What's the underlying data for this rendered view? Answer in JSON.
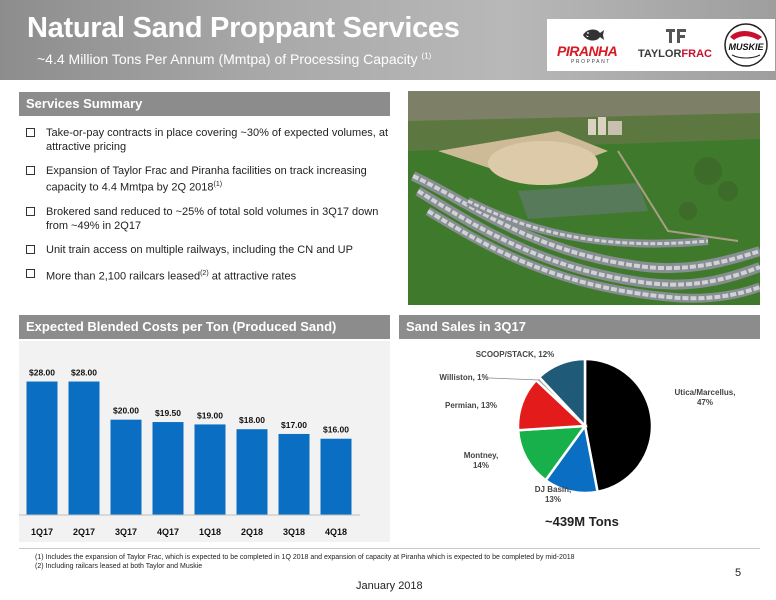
{
  "header": {
    "title": "Natural Sand Proppant Services",
    "subtitle": "~4.4 Million Tons Per Annum (Mmtpa) of Processing Capacity",
    "subtitle_footnote": "(1)"
  },
  "logos": {
    "piranha_name": "PIRANHA",
    "piranha_sub": "PROPPANT",
    "taylor_name_a": "TAYLOR",
    "taylor_name_b": "FRAC",
    "muskie_name": "MUSKIE"
  },
  "services": {
    "heading": "Services Summary",
    "bullets": [
      {
        "text": "Take-or-pay contracts in place covering ~30% of expected volumes, at attractive pricing",
        "sup": "",
        "after": ""
      },
      {
        "text": "Expansion of Taylor Frac and Piranha facilities on track increasing capacity to 4.4 Mmtpa by 2Q 2018",
        "sup": "(1)",
        "after": ""
      },
      {
        "text": "Brokered sand reduced to ~25% of total sold volumes in 3Q17 down from ~49% in 2Q17",
        "sup": "",
        "after": ""
      },
      {
        "text": "Unit train access on multiple railways, including the CN and UP",
        "sup": "",
        "after": ""
      },
      {
        "text": "More than 2,100 railcars leased",
        "sup": "(2)",
        "after": " at attractive rates"
      }
    ]
  },
  "costs_section": {
    "heading": "Expected Blended Costs per Ton (Produced Sand)"
  },
  "sales_section": {
    "heading": "Sand Sales in 3Q17",
    "total": "~439M Tons"
  },
  "chart_data": [
    {
      "type": "bar",
      "categories": [
        "1Q17",
        "2Q17",
        "3Q17",
        "4Q17",
        "1Q18",
        "2Q18",
        "3Q18",
        "4Q18"
      ],
      "values": [
        28.0,
        28.0,
        20.0,
        19.5,
        19.0,
        18.0,
        17.0,
        16.0
      ],
      "data_labels": [
        "$28.00",
        "$28.00",
        "$20.00",
        "$19.50",
        "$19.00",
        "$18.00",
        "$17.00",
        "$16.00"
      ],
      "title": "",
      "xlabel": "",
      "ylabel": "",
      "ylim": [
        0,
        30
      ],
      "grid": false,
      "color": "#0a6ec2"
    },
    {
      "type": "pie",
      "slices": [
        {
          "label": "Utica/Marcellus,",
          "pct_label": "47%",
          "value": 47,
          "color": "#000000"
        },
        {
          "label": "DJ Basin,",
          "pct_label": "13%",
          "value": 13,
          "color": "#0a6ec2"
        },
        {
          "label": "Montney,",
          "pct_label": "14%",
          "value": 14,
          "color": "#17b04b"
        },
        {
          "label": "Permian, 13%",
          "pct_label": "",
          "value": 13,
          "color": "#e31b1b"
        },
        {
          "label": "Williston, 1%",
          "pct_label": "",
          "value": 1,
          "color": "#a6a6a6"
        },
        {
          "label": "SCOOP/STACK, 12%",
          "pct_label": "",
          "value": 12,
          "color": "#1f5a78"
        }
      ],
      "legend": "none"
    }
  ],
  "footer": {
    "footnote1": "(1) Includes the expansion of Taylor Frac, which is expected to be completed in 1Q 2018 and expansion of capacity at Piranha which is expected to be completed by mid-2018",
    "footnote2": "(2) Including railcars leased at both Taylor and Muskie",
    "page": "5",
    "date": "January 2018"
  }
}
